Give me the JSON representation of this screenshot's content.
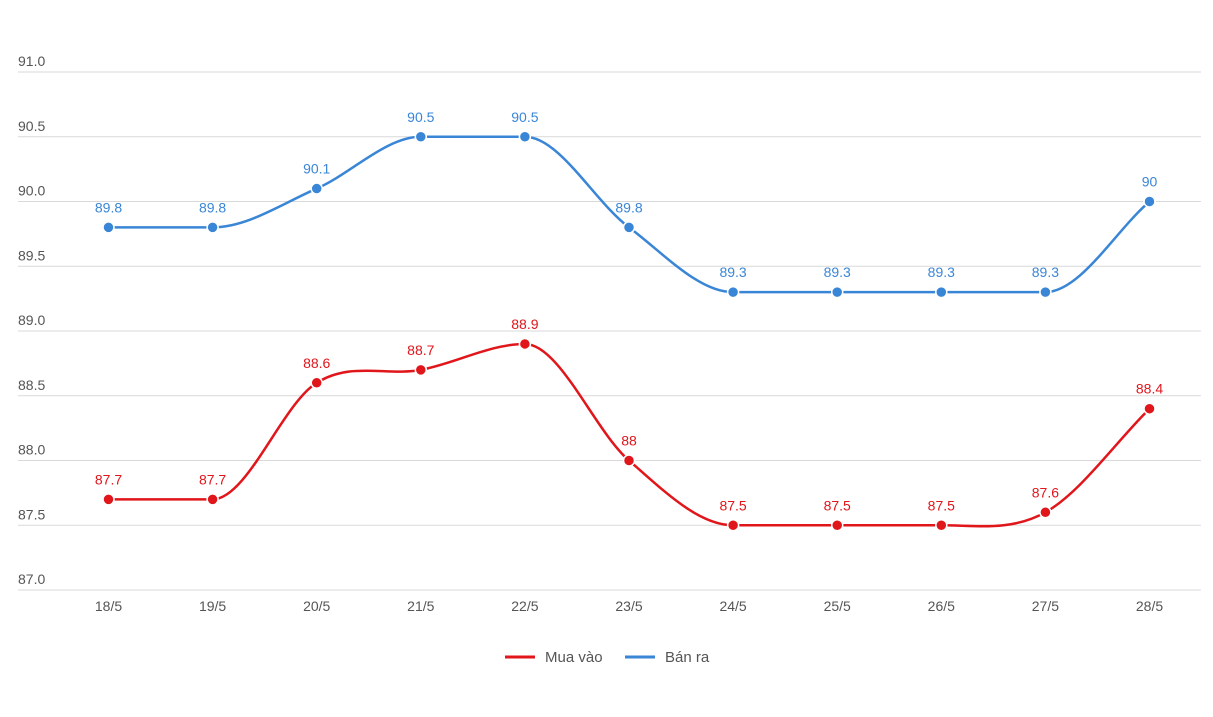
{
  "chart_data": {
    "type": "line",
    "categories": [
      "18/5",
      "19/5",
      "20/5",
      "21/5",
      "22/5",
      "23/5",
      "24/5",
      "25/5",
      "26/5",
      "27/5",
      "28/5"
    ],
    "series": [
      {
        "name": "Mua vào",
        "color": "#e0161b",
        "values": [
          87.7,
          87.7,
          88.6,
          88.7,
          88.9,
          88,
          87.5,
          87.5,
          87.5,
          87.6,
          88.4
        ],
        "labels": [
          "87.7",
          "87.7",
          "88.6",
          "88.7",
          "88.9",
          "88",
          "87.5",
          "87.5",
          "87.5",
          "87.6",
          "88.4"
        ]
      },
      {
        "name": "Bán ra",
        "color": "#3a86d6",
        "values": [
          89.8,
          89.8,
          90.1,
          90.5,
          90.5,
          89.8,
          89.3,
          89.3,
          89.3,
          89.3,
          90
        ],
        "labels": [
          "89.8",
          "89.8",
          "90.1",
          "90.5",
          "90.5",
          "89.8",
          "89.3",
          "89.3",
          "89.3",
          "89.3",
          "90"
        ]
      }
    ],
    "yticks": [
      "87.0",
      "87.5",
      "88.0",
      "88.5",
      "89.0",
      "89.5",
      "90.0",
      "90.5",
      "91.0"
    ],
    "ylim": [
      87,
      91
    ],
    "grid": true,
    "legend_position": "bottom-center",
    "smooth": true
  }
}
